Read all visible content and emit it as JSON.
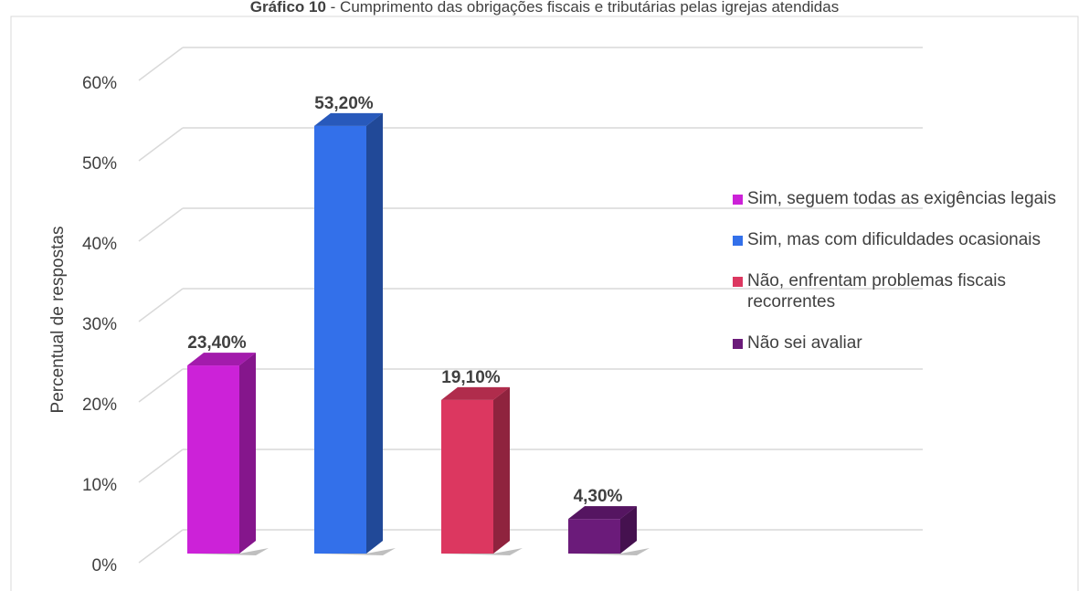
{
  "chart_data": {
    "type": "bar3d",
    "title_number": "Gráfico 10",
    "title": "- Cumprimento das obrigações fiscais e tributárias pelas igrejas atendidas",
    "y_label": "Percentual de respostas",
    "categories": [
      "Sim, seguem todas as exigências legais",
      "Sim, mas com dificuldades ocasionais",
      "Não, enfrentam problemas fiscais recorrentes",
      "Não sei avaliar"
    ],
    "values": [
      23.4,
      53.2,
      19.1,
      4.3
    ],
    "value_labels": [
      "23,40%",
      "53,20%",
      "19,10%",
      "4,30%"
    ],
    "colors": [
      "#cc22d8",
      "#3370ea",
      "#dc3760",
      "#6b1b7a"
    ],
    "ylim": [
      0,
      60
    ],
    "yticks": [
      {
        "value": 0,
        "label": "0%"
      },
      {
        "value": 10,
        "label": "10%"
      },
      {
        "value": 20,
        "label": "20%"
      },
      {
        "value": 30,
        "label": "30%"
      },
      {
        "value": 40,
        "label": "40%"
      },
      {
        "value": 50,
        "label": "50%"
      },
      {
        "value": 60,
        "label": "60%"
      }
    ],
    "grid": true,
    "legend": "right"
  }
}
